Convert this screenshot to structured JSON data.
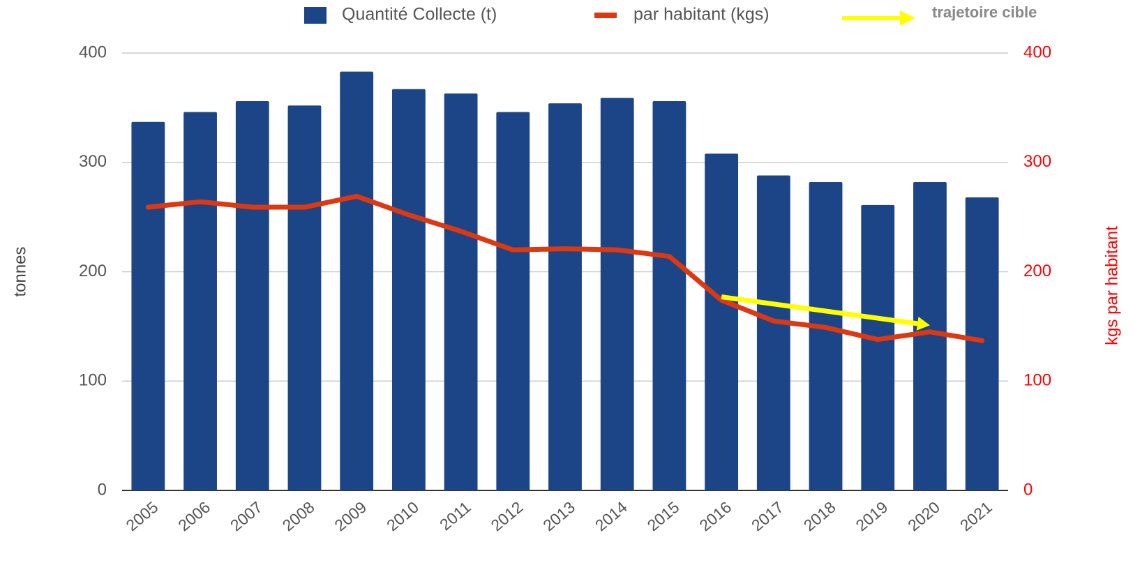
{
  "chart_data": {
    "type": "bar-line",
    "categories": [
      "2005",
      "2006",
      "2007",
      "2008",
      "2009",
      "2010",
      "2011",
      "2012",
      "2013",
      "2014",
      "2015",
      "2016",
      "2017",
      "2018",
      "2019",
      "2020",
      "2021"
    ],
    "series": [
      {
        "name": "Quantité Collecte (t)",
        "type": "bar",
        "color": "#1c4587",
        "values": [
          337,
          346,
          356,
          352,
          383,
          367,
          363,
          346,
          354,
          359,
          356,
          308,
          288,
          282,
          261,
          282,
          268
        ]
      },
      {
        "name": "par habitant (kgs)",
        "type": "line",
        "axis": "y2",
        "color": "#dc3912",
        "values": [
          259,
          264,
          259,
          259,
          269,
          252,
          237,
          220,
          221,
          220,
          214,
          174,
          155,
          149,
          138,
          145,
          137
        ]
      }
    ],
    "arrow": {
      "name": "trajetoire cible",
      "color": "#ffff00",
      "x": [
        "2016",
        "2020"
      ],
      "values": [
        177,
        151
      ],
      "axis": "y2"
    },
    "ylabel": "tonnes",
    "y2label": "kgs par habitant",
    "ylim": [
      0,
      400
    ],
    "yticks": [
      0,
      100,
      200,
      300,
      400
    ],
    "y2lim": [
      0,
      400
    ],
    "y2ticks": [
      0,
      100,
      200,
      300,
      400
    ],
    "grid": true,
    "legend": "top"
  }
}
